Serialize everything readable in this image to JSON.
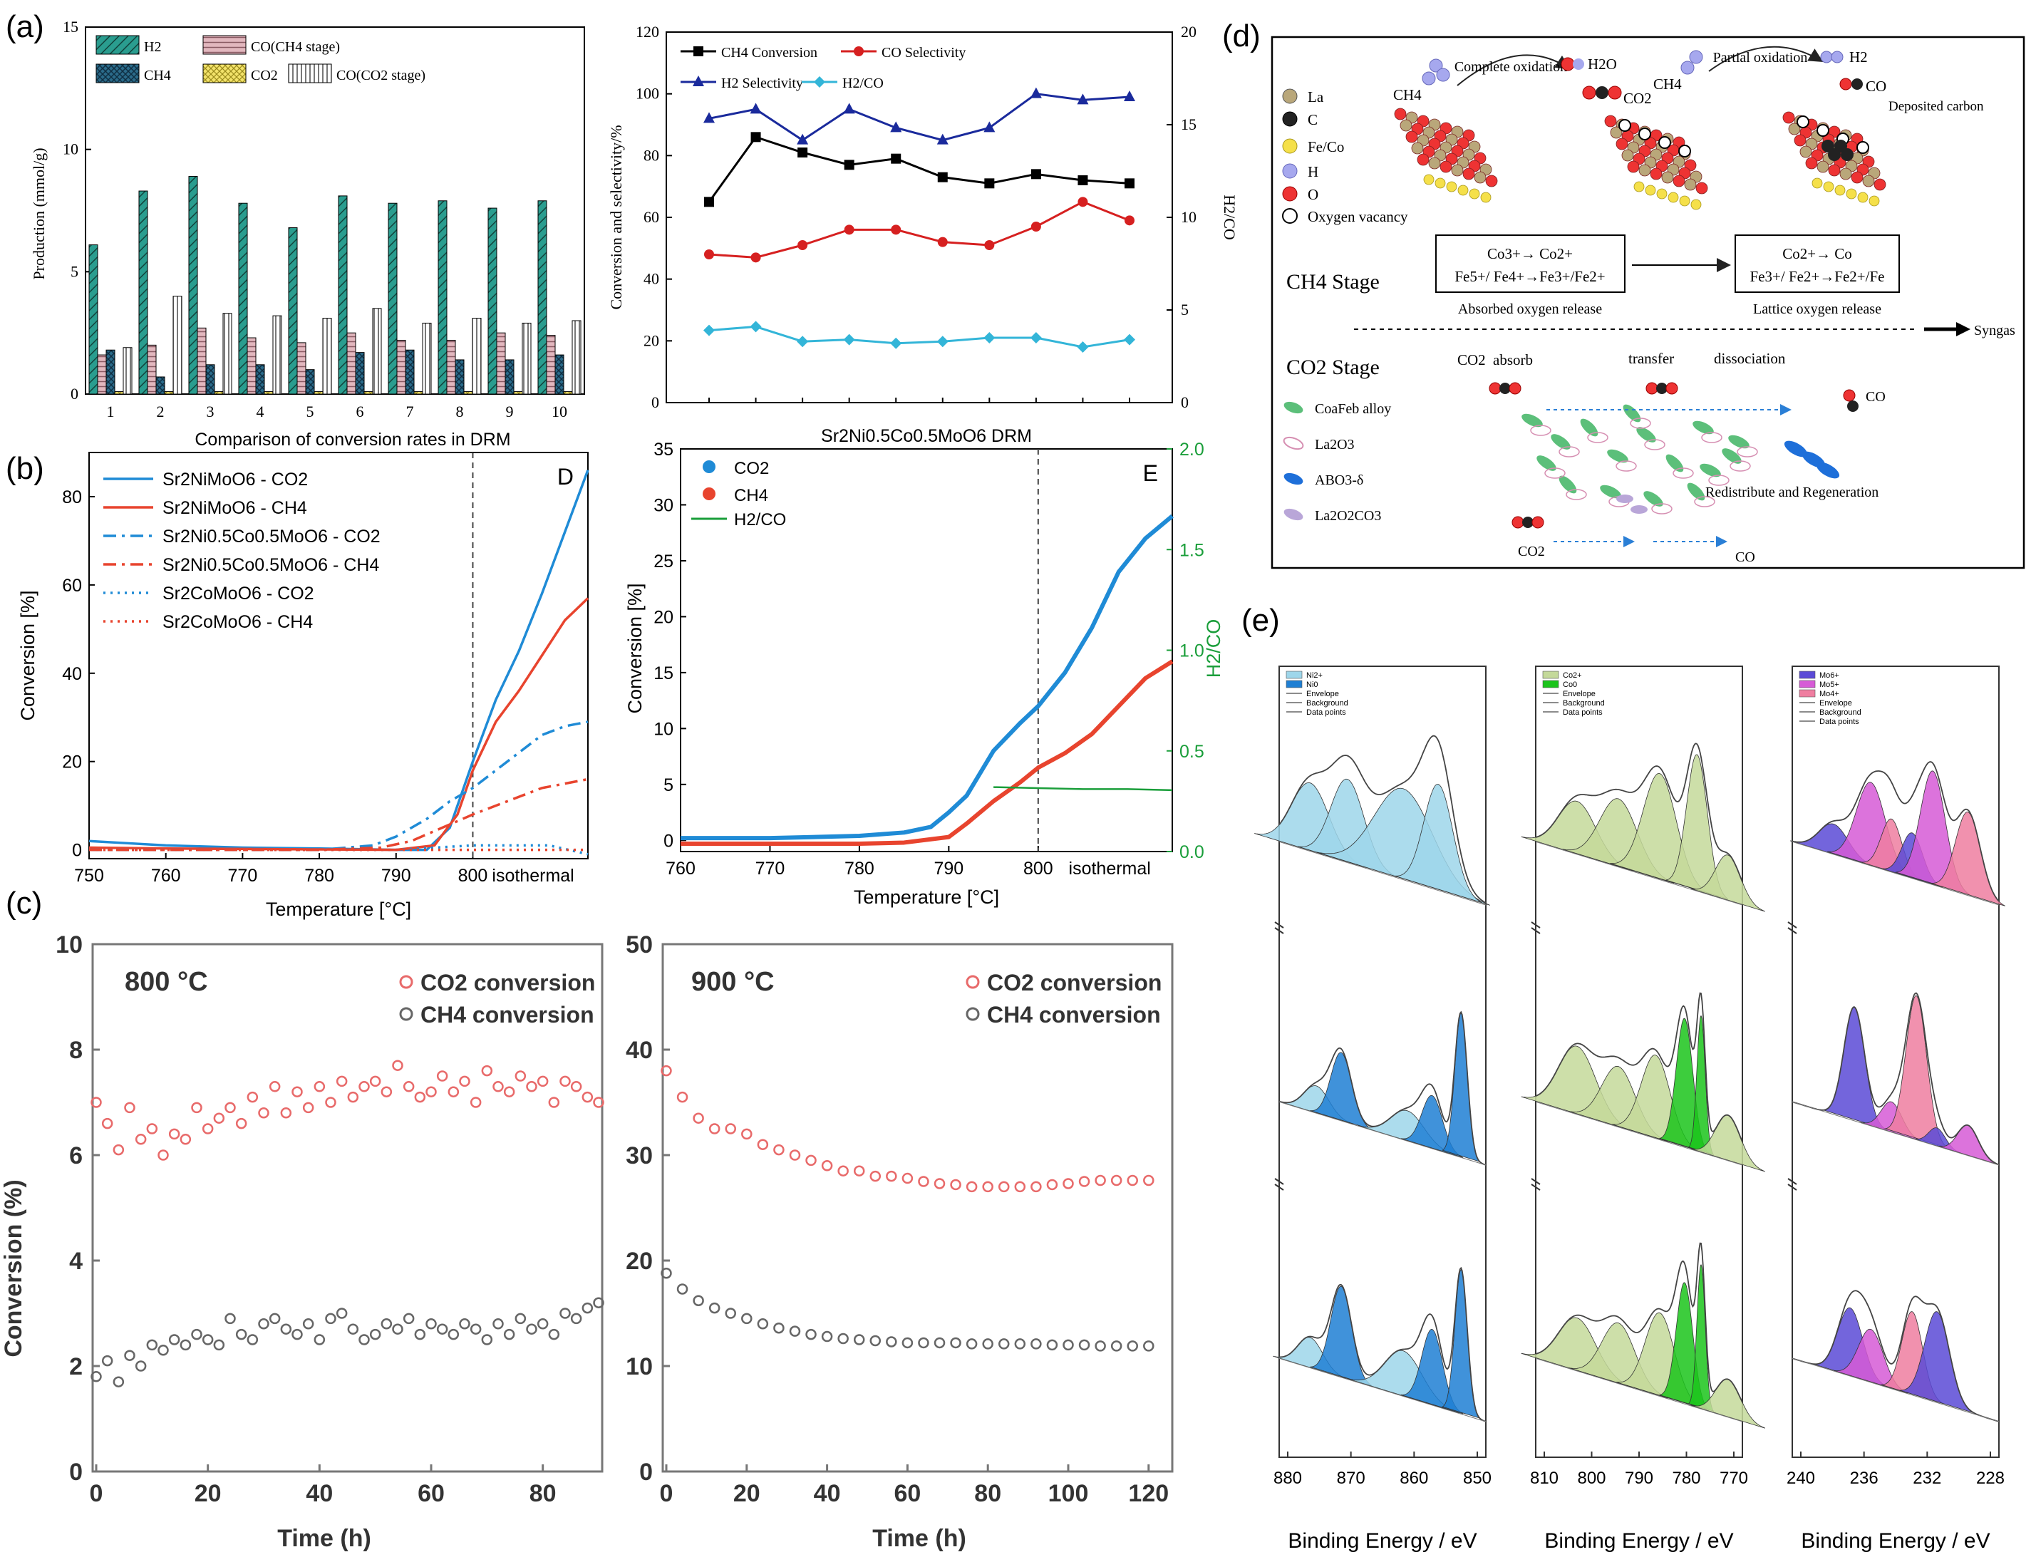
{
  "panels": {
    "a": {
      "label": "(a)",
      "bar": {
        "ylabel": "Production (mmol/g)",
        "yticks": [
          "0",
          "5",
          "10",
          "15"
        ],
        "categories": [
          "1",
          "2",
          "3",
          "4",
          "5",
          "6",
          "7",
          "8",
          "9",
          "10"
        ],
        "legend": [
          "H2",
          "CO(CH4 stage)",
          "CH4",
          "CO2",
          "CO(CO2 stage)"
        ]
      },
      "line": {
        "ylabel_left": "Conversion and selectivity/%",
        "ylabel_right": "H2/CO",
        "yticks_left": [
          "0",
          "20",
          "40",
          "60",
          "80",
          "100",
          "120"
        ],
        "yticks_right": [
          "0",
          "5",
          "10",
          "15",
          "20"
        ],
        "legend": [
          "CH4 Conversion",
          "CO Selectivity",
          "H2 Selectivity",
          "H2/CO"
        ]
      }
    },
    "b": {
      "label": "(b)",
      "title": "Comparison of conversion rates in DRM",
      "D": {
        "letter": "D",
        "ylabel": "Conversion [%]",
        "xlabel": "Temperature [°C]",
        "xticks": [
          "750",
          "760",
          "770",
          "780",
          "790",
          "800",
          "isothermal"
        ],
        "yticks": [
          "0",
          "20",
          "40",
          "60",
          "80"
        ],
        "legend": [
          "Sr2NiMoO6 - CO2",
          "Sr2NiMoO6 - CH4",
          "Sr2Ni0.5Co0.5MoO6 - CO2",
          "Sr2Ni0.5Co0.5MoO6 - CH4",
          "Sr2CoMoO6 - CO2",
          "Sr2CoMoO6 - CH4"
        ]
      },
      "E": {
        "letter": "E",
        "title": "Sr2Ni0.5Co0.5MoO6 DRM",
        "ylabel": "Conversion [%]",
        "ylabel_right": "H2/CO",
        "xlabel": "Temperature [°C]",
        "xticks": [
          "760",
          "770",
          "780",
          "790",
          "800",
          "isothermal"
        ],
        "yticks": [
          "0",
          "5",
          "10",
          "15",
          "20",
          "25",
          "30",
          "35"
        ],
        "yticks_right": [
          "0.0",
          "0.5",
          "1.0",
          "1.5",
          "2.0"
        ],
        "legend": [
          "CO2",
          "CH4",
          "H2/CO"
        ]
      }
    },
    "c": {
      "label": "(c)",
      "ylabel": "Conversion (%)",
      "xlabel": "Time (h)",
      "left": {
        "temp": "800 °C",
        "yticks": [
          "0",
          "2",
          "4",
          "6",
          "8",
          "10"
        ],
        "xticks": [
          "0",
          "20",
          "40",
          "60",
          "80"
        ]
      },
      "right": {
        "temp": "900 °C",
        "yticks": [
          "0",
          "10",
          "20",
          "30",
          "40",
          "50"
        ],
        "xticks": [
          "0",
          "20",
          "40",
          "60",
          "80",
          "100",
          "120"
        ]
      },
      "legend": [
        "CO2 conversion",
        "CH4 conversion"
      ]
    },
    "d": {
      "label": "(d)",
      "legend_top": [
        "La",
        "C",
        "Fe/Co",
        "H",
        "O",
        "Oxygen vacancy"
      ],
      "complete_oxidation": "Complete oxidation",
      "partial_oxidation": "Partial oxidation",
      "deposited_carbon": "Deposited carbon",
      "ch4_stage": "CH4  Stage",
      "co2_stage": "CO2  Stage",
      "box1_line1": "Co3+→ Co2+",
      "box1_line2": "Fe5+/ Fe4+→Fe3+/Fe2+",
      "box2_line1": "Co2+→ Co",
      "box2_line2": "Fe3+/ Fe2+→Fe2+/Fe",
      "absorbed_release": "Absorbed oxygen release",
      "lattice_release": "Lattice oxygen release",
      "syngas": "Syngas",
      "absorb": "absorb",
      "transfer": "transfer",
      "dissociation": "dissociation",
      "redistribute": "Redistribute and Regeneration",
      "legend_bottom": [
        "CoaFeb alloy",
        "La2O3",
        "ABO3-δ",
        "La2O2CO3"
      ],
      "mol_ch4": "CH4",
      "mol_h2o": "H2O",
      "mol_co2": "CO2",
      "mol_h2": "H2",
      "mol_co": "CO"
    },
    "e": {
      "label": "(e)",
      "xlabel": "Binding Energy / eV",
      "ni": {
        "legend": [
          "Ni2+",
          "Ni0",
          "Envelope",
          "Background",
          "Data points"
        ],
        "xticks": [
          "880",
          "870",
          "860",
          "850"
        ]
      },
      "co": {
        "legend": [
          "Co2+",
          "Co0",
          "Envelope",
          "Background",
          "Data points"
        ],
        "xticks": [
          "810",
          "800",
          "790",
          "780",
          "770"
        ]
      },
      "mo": {
        "legend": [
          "Mo6+",
          "Mo5+",
          "Mo4+",
          "Envelope",
          "Background",
          "Data points"
        ],
        "xticks": [
          "240",
          "236",
          "232",
          "228"
        ]
      }
    }
  },
  "colors": {
    "teal": "#2a9d8f",
    "pink": "#d9a7b0",
    "navy": "#1f4e79",
    "yellow": "#f3e36b",
    "blue": "#1f8bd6",
    "red": "#e8442e",
    "green": "#1a9e3a"
  },
  "chart_data": [
    {
      "id": "a-bar",
      "type": "bar",
      "categories": [
        "1",
        "2",
        "3",
        "4",
        "5",
        "6",
        "7",
        "8",
        "9",
        "10"
      ],
      "ylim": [
        0,
        15
      ],
      "ylabel": "Production (mmol/g)",
      "series": [
        {
          "name": "H2",
          "values": [
            6.1,
            8.3,
            8.9,
            7.8,
            6.8,
            8.1,
            7.8,
            7.9,
            7.6,
            7.9
          ]
        },
        {
          "name": "CO(CH4 stage)",
          "values": [
            1.6,
            2.0,
            2.7,
            2.3,
            2.1,
            2.5,
            2.2,
            2.2,
            2.5,
            2.4
          ]
        },
        {
          "name": "CH4",
          "values": [
            1.8,
            0.7,
            1.2,
            1.2,
            1.0,
            1.7,
            1.8,
            1.4,
            1.4,
            1.6
          ]
        },
        {
          "name": "CO2",
          "values": [
            0.1,
            0.1,
            0.1,
            0.1,
            0.1,
            0.1,
            0.1,
            0.1,
            0.1,
            0.1
          ]
        },
        {
          "name": "CO(CO2 stage)",
          "values": [
            1.9,
            4.0,
            3.3,
            3.2,
            3.1,
            3.5,
            2.9,
            3.1,
            2.9,
            3.0
          ]
        }
      ]
    },
    {
      "id": "a-line",
      "type": "line",
      "x": [
        1,
        2,
        3,
        4,
        5,
        6,
        7,
        8,
        9,
        10
      ],
      "ylim": [
        0,
        120
      ],
      "ylim_right": [
        0,
        20
      ],
      "series": [
        {
          "name": "CH4 Conversion",
          "values": [
            65,
            86,
            81,
            77,
            79,
            73,
            71,
            74,
            72,
            71
          ]
        },
        {
          "name": "CO Selectivity",
          "values": [
            48,
            47,
            51,
            56,
            56,
            52,
            51,
            57,
            65,
            59
          ]
        },
        {
          "name": "H2 Selectivity",
          "values": [
            92,
            95,
            85,
            95,
            89,
            85,
            89,
            100,
            98,
            99
          ]
        },
        {
          "name": "H2/CO",
          "axis": "right",
          "values": [
            3.9,
            4.1,
            3.3,
            3.4,
            3.2,
            3.3,
            3.5,
            3.5,
            3.0,
            3.4
          ]
        }
      ]
    },
    {
      "id": "b-D",
      "type": "line",
      "title": "Comparison of conversion rates in DRM",
      "xlim": [
        750,
        815
      ],
      "ylim": [
        -2,
        90
      ],
      "xlabel": "Temperature [°C]",
      "ylabel": "Conversion [%]",
      "series": [
        {
          "name": "Sr2NiMoO6 - CO2",
          "x": [
            750,
            755,
            760,
            770,
            780,
            790,
            794,
            797,
            800,
            803,
            806,
            809,
            812,
            815
          ],
          "values": [
            2,
            1.5,
            1,
            0.5,
            0.3,
            0,
            0,
            5,
            20,
            34,
            45,
            58,
            72,
            86
          ]
        },
        {
          "name": "Sr2NiMoO6 - CH4",
          "x": [
            750,
            760,
            770,
            780,
            790,
            795,
            798,
            800,
            803,
            806,
            809,
            812,
            815
          ],
          "values": [
            0.5,
            0.3,
            0.2,
            0.1,
            0,
            1,
            8,
            18,
            29,
            36,
            44,
            52,
            57
          ]
        },
        {
          "name": "Sr2Ni0.5Co0.5MoO6 - CO2",
          "x": [
            750,
            760,
            770,
            780,
            787,
            790,
            794,
            797,
            800,
            803,
            806,
            809,
            812,
            815
          ],
          "values": [
            0,
            0,
            0,
            0,
            1,
            3,
            7,
            11,
            14,
            18,
            22,
            26,
            28,
            29
          ]
        },
        {
          "name": "Sr2Ni0.5Co0.5MoO6 - CH4",
          "x": [
            750,
            760,
            770,
            780,
            788,
            792,
            796,
            800,
            803,
            806,
            809,
            812,
            815
          ],
          "values": [
            0,
            0,
            0,
            0,
            0.5,
            2,
            5,
            8,
            10,
            12,
            14,
            15,
            16
          ]
        },
        {
          "name": "Sr2CoMoO6 - CO2",
          "x": [
            750,
            760,
            770,
            780,
            790,
            800,
            805,
            810,
            815
          ],
          "values": [
            0,
            0,
            0,
            0,
            0,
            1,
            1,
            1,
            -1
          ]
        },
        {
          "name": "Sr2CoMoO6 - CH4",
          "x": [
            750,
            760,
            770,
            780,
            790,
            800,
            805,
            810,
            815
          ],
          "values": [
            0,
            0,
            0,
            0,
            0,
            0,
            0,
            0,
            0
          ]
        }
      ]
    },
    {
      "id": "b-E",
      "type": "line",
      "title": "Sr2Ni0.5Co0.5MoO6 DRM",
      "xlim": [
        760,
        815
      ],
      "ylim": [
        -1,
        35
      ],
      "ylim_right": [
        0,
        2
      ],
      "series": [
        {
          "name": "CO2",
          "x": [
            760,
            770,
            780,
            785,
            788,
            790,
            792,
            795,
            798,
            800,
            803,
            806,
            809,
            812,
            815
          ],
          "values": [
            0.2,
            0.2,
            0.4,
            0.7,
            1.2,
            2.5,
            4,
            8,
            10.5,
            12,
            15,
            19,
            24,
            27,
            29
          ]
        },
        {
          "name": "CH4",
          "x": [
            760,
            770,
            780,
            785,
            790,
            792,
            795,
            798,
            800,
            803,
            806,
            809,
            812,
            815
          ],
          "values": [
            -0.3,
            -0.3,
            -0.3,
            -0.2,
            0.3,
            1.5,
            3.5,
            5.2,
            6.5,
            7.8,
            9.5,
            12,
            14.5,
            16
          ]
        },
        {
          "name": "H2/CO",
          "axis": "right",
          "x": [
            795,
            800,
            805,
            810,
            815
          ],
          "values": [
            0.32,
            0.315,
            0.31,
            0.31,
            0.305
          ]
        }
      ]
    },
    {
      "id": "c-800",
      "type": "scatter",
      "xlim": [
        0,
        90
      ],
      "ylim": [
        0,
        10
      ],
      "series": [
        {
          "name": "CO2 conversion",
          "x": [
            0,
            2,
            4,
            6,
            8,
            10,
            12,
            14,
            16,
            18,
            20,
            22,
            24,
            26,
            28,
            30,
            32,
            34,
            36,
            38,
            40,
            42,
            44,
            46,
            48,
            50,
            52,
            54,
            56,
            58,
            60,
            62,
            64,
            66,
            68,
            70,
            72,
            74,
            76,
            78,
            80,
            82,
            84,
            86,
            88,
            90
          ],
          "values": [
            7.0,
            6.6,
            6.1,
            6.9,
            6.3,
            6.5,
            6.0,
            6.4,
            6.3,
            6.9,
            6.5,
            6.7,
            6.9,
            6.6,
            7.1,
            6.8,
            7.3,
            6.8,
            7.2,
            6.9,
            7.3,
            7.0,
            7.4,
            7.1,
            7.3,
            7.4,
            7.2,
            7.7,
            7.3,
            7.1,
            7.2,
            7.5,
            7.2,
            7.4,
            7.0,
            7.6,
            7.3,
            7.2,
            7.5,
            7.3,
            7.4,
            7.0,
            7.4,
            7.3,
            7.1,
            7.0
          ]
        },
        {
          "name": "CH4 conversion",
          "x": [
            0,
            2,
            4,
            6,
            8,
            10,
            12,
            14,
            16,
            18,
            20,
            22,
            24,
            26,
            28,
            30,
            32,
            34,
            36,
            38,
            40,
            42,
            44,
            46,
            48,
            50,
            52,
            54,
            56,
            58,
            60,
            62,
            64,
            66,
            68,
            70,
            72,
            74,
            76,
            78,
            80,
            82,
            84,
            86,
            88,
            90
          ],
          "values": [
            1.8,
            2.1,
            1.7,
            2.2,
            2.0,
            2.4,
            2.3,
            2.5,
            2.4,
            2.6,
            2.5,
            2.4,
            2.9,
            2.6,
            2.5,
            2.8,
            2.9,
            2.7,
            2.6,
            2.8,
            2.5,
            2.9,
            3.0,
            2.7,
            2.5,
            2.6,
            2.8,
            2.7,
            2.9,
            2.6,
            2.8,
            2.7,
            2.6,
            2.8,
            2.7,
            2.5,
            2.8,
            2.6,
            2.9,
            2.7,
            2.8,
            2.6,
            3.0,
            2.9,
            3.1,
            3.2
          ]
        }
      ]
    },
    {
      "id": "c-900",
      "type": "scatter",
      "xlim": [
        0,
        125
      ],
      "ylim": [
        0,
        50
      ],
      "series": [
        {
          "name": "CO2 conversion",
          "x": [
            0,
            4,
            8,
            12,
            16,
            20,
            24,
            28,
            32,
            36,
            40,
            44,
            48,
            52,
            56,
            60,
            64,
            68,
            72,
            76,
            80,
            84,
            88,
            92,
            96,
            100,
            104,
            108,
            112,
            116,
            120
          ],
          "values": [
            38,
            35.5,
            33.5,
            32.5,
            32.5,
            32,
            31,
            30.5,
            30,
            29.5,
            29,
            28.5,
            28.5,
            28,
            28,
            27.8,
            27.5,
            27.3,
            27.2,
            27,
            27,
            27,
            27,
            27,
            27.2,
            27.3,
            27.5,
            27.6,
            27.6,
            27.6,
            27.6
          ]
        },
        {
          "name": "CH4 conversion",
          "x": [
            0,
            4,
            8,
            12,
            16,
            20,
            24,
            28,
            32,
            36,
            40,
            44,
            48,
            52,
            56,
            60,
            64,
            68,
            72,
            76,
            80,
            84,
            88,
            92,
            96,
            100,
            104,
            108,
            112,
            116,
            120
          ],
          "values": [
            18.8,
            17.3,
            16.2,
            15.5,
            15,
            14.5,
            14,
            13.6,
            13.3,
            13,
            12.8,
            12.6,
            12.5,
            12.4,
            12.3,
            12.2,
            12.2,
            12.2,
            12.2,
            12.1,
            12.1,
            12.1,
            12.1,
            12.1,
            12,
            12,
            12,
            11.9,
            11.9,
            11.9,
            11.9
          ]
        }
      ]
    }
  ]
}
